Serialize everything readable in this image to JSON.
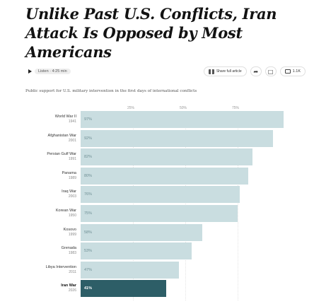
{
  "headline": "Unlike Past U.S. Conflicts, Iran Attack Is Opposed by Most Americans",
  "toolbar": {
    "listen_label": "Listen · 4:25 min",
    "share_label": "Share full article",
    "comments_count": "1.1K"
  },
  "subtitle": "Public support for U.S. military intervention in the first days of international conflicts",
  "chart_data": {
    "type": "bar",
    "orientation": "horizontal",
    "title": "",
    "xlabel": "",
    "ylabel": "",
    "xlim": [
      0,
      100
    ],
    "ticks": [
      "25%",
      "50%",
      "75%"
    ],
    "grid": true,
    "categories": [
      "World War II",
      "Afghanistan War",
      "Persian Gulf War",
      "Panama",
      "Iraq War",
      "Korean War",
      "Kosovo",
      "Grenada",
      "Libya Intervention",
      "Iran War"
    ],
    "years": [
      "1941",
      "2001",
      "1991",
      "1989",
      "2003",
      "1950",
      "1999",
      "1983",
      "2011",
      "2026"
    ],
    "values": [
      97,
      92,
      82,
      80,
      76,
      75,
      58,
      53,
      47,
      41
    ],
    "labels": [
      "97%",
      "92%",
      "82%",
      "80%",
      "76%",
      "75%",
      "58%",
      "53%",
      "47%",
      "41%"
    ],
    "highlight": "Iran War",
    "colors": {
      "bar": "#c9dde0",
      "highlight": "#2d5e67"
    }
  }
}
